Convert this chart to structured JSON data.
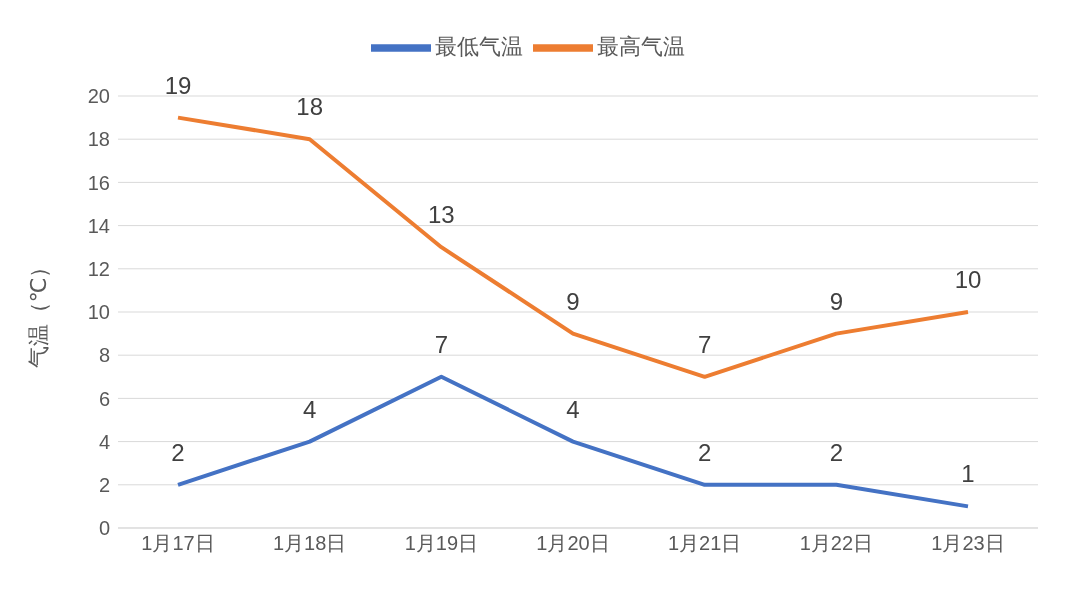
{
  "chart_data": {
    "type": "line",
    "ylabel": "气温（℃）",
    "categories": [
      "1月17日",
      "1月18日",
      "1月19日",
      "1月20日",
      "1月21日",
      "1月22日",
      "1月23日"
    ],
    "series": [
      {
        "name": "最低气温",
        "color": "#4472c4",
        "values": [
          2,
          4,
          7,
          4,
          2,
          2,
          1
        ]
      },
      {
        "name": "最高气温",
        "color": "#ed7d31",
        "values": [
          19,
          18,
          13,
          9,
          7,
          9,
          10
        ]
      }
    ],
    "ylim": [
      0,
      20
    ],
    "yticks": [
      0,
      2,
      4,
      6,
      8,
      10,
      12,
      14,
      16,
      18,
      20
    ],
    "grid": "y",
    "legend": "top",
    "data_labels": true,
    "marker": "none",
    "line_style": "solid"
  }
}
